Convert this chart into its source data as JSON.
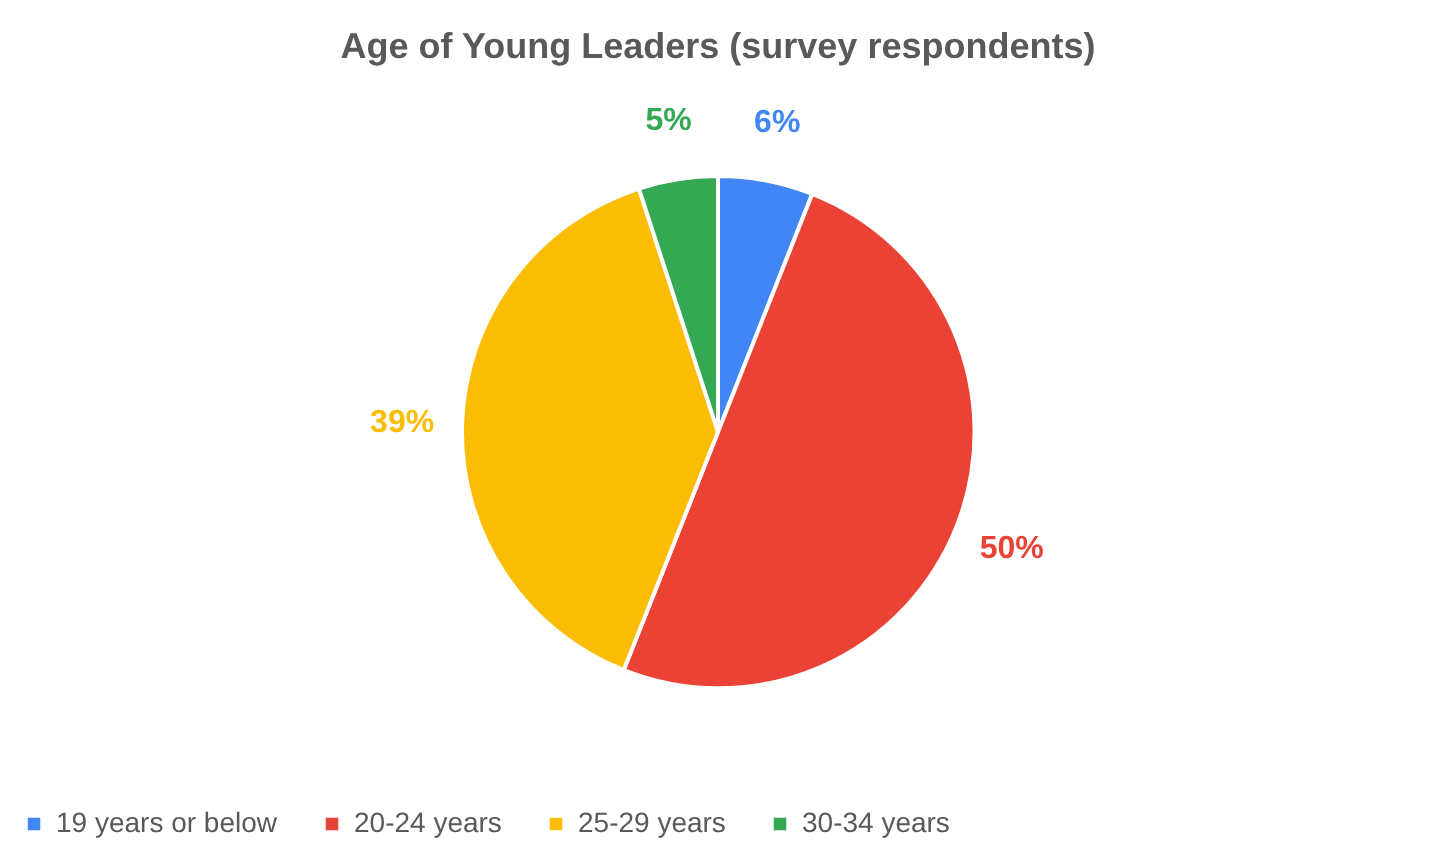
{
  "chart_data": {
    "type": "pie",
    "title": "Age of Young Leaders (survey respondents)",
    "categories": [
      "19 years or below",
      "20-24 years",
      "25-29 years",
      "30-34 years"
    ],
    "values": [
      6,
      50,
      39,
      5
    ],
    "colors": [
      "#4285f4",
      "#ea4335",
      "#fbbc04",
      "#34a853"
    ],
    "value_labels": [
      "6%",
      "50%",
      "39%",
      "5%"
    ],
    "legend": "bottom"
  }
}
